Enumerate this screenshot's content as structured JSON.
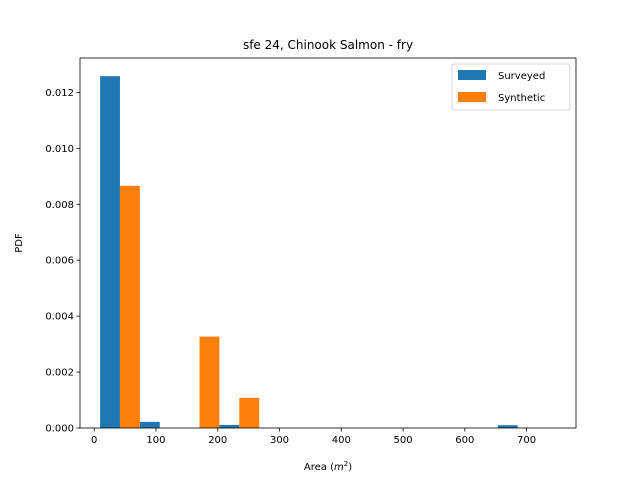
{
  "chart_data": {
    "type": "bar",
    "title": "sfe 24, Chinook Salmon - fry",
    "xlabel_prefix": "Area (",
    "xlabel_unit": "m",
    "xlabel_exp": "2",
    "xlabel_suffix": ")",
    "ylabel": "PDF",
    "xlim": [
      -23,
      780
    ],
    "ylim": [
      0,
      0.01323
    ],
    "xticks": [
      0,
      100,
      200,
      300,
      400,
      500,
      600,
      700
    ],
    "yticks": [
      "0.000",
      "0.002",
      "0.004",
      "0.006",
      "0.008",
      "0.010",
      "0.012"
    ],
    "ytick_values": [
      0,
      0.002,
      0.004,
      0.006,
      0.008,
      0.01,
      0.012
    ],
    "bin_edges": [
      9.5,
      73.9,
      138.3,
      202.7,
      267.1,
      331.5,
      395.9,
      460.3,
      524.7,
      589.1,
      653.5,
      717.9,
      750
    ],
    "series": [
      {
        "name": "Surveyed",
        "color": "#1f77b4",
        "values": [
          0.01258,
          0.00022,
          0,
          0.00011,
          0,
          0,
          0,
          0,
          0,
          0,
          0.0001,
          0
        ]
      },
      {
        "name": "Synthetic",
        "color": "#ff7f0e",
        "values": [
          0.00866,
          0,
          0.00327,
          0.00108,
          0,
          0,
          0,
          0,
          0,
          0,
          0,
          0
        ]
      }
    ],
    "legend_position": "upper-right",
    "grid": false
  }
}
